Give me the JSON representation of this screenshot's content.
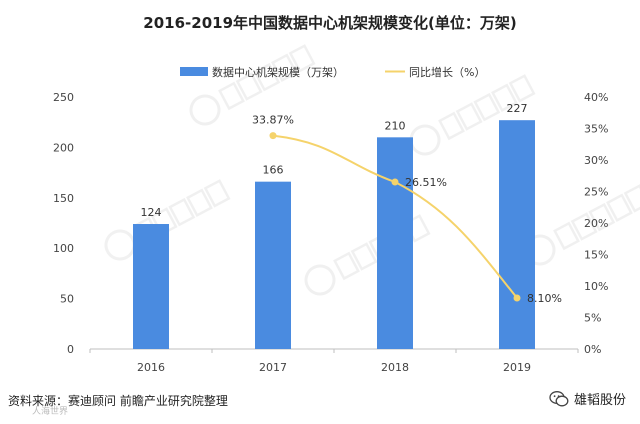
{
  "chart_data": {
    "type": "bar+line",
    "title": "2016-2019年中国数据中心机架规模变化(单位：万架)",
    "categories": [
      "2016",
      "2017",
      "2018",
      "2019"
    ],
    "series": [
      {
        "name": "数据中心机架规模（万架）",
        "type": "bar",
        "axis": "left",
        "values": [
          124,
          166,
          210,
          227
        ],
        "labels": [
          "124",
          "166",
          "210",
          "227"
        ],
        "color": "#4a8be0"
      },
      {
        "name": "同比增长（%）",
        "type": "line",
        "axis": "right",
        "x": [
          "2017",
          "2018",
          "2019"
        ],
        "values": [
          33.87,
          26.51,
          8.1
        ],
        "labels": [
          "33.87%",
          "26.51%",
          "8.10%"
        ],
        "color": "#f5d36b"
      }
    ],
    "y_left": {
      "ylim": [
        0,
        250
      ],
      "ticks": [
        "0",
        "50",
        "100",
        "150",
        "200",
        "250"
      ]
    },
    "y_right": {
      "ylim": [
        0,
        40
      ],
      "ticks": [
        "0%",
        "5%",
        "10%",
        "15%",
        "20%",
        "25%",
        "30%",
        "35%",
        "40%"
      ]
    },
    "grid": false,
    "legend_position": "top-center"
  },
  "footer": {
    "source": "资料来源：赛迪顾问 前瞻产业研究院整理",
    "brand": "雄韬股份",
    "signature": "人海世界"
  }
}
